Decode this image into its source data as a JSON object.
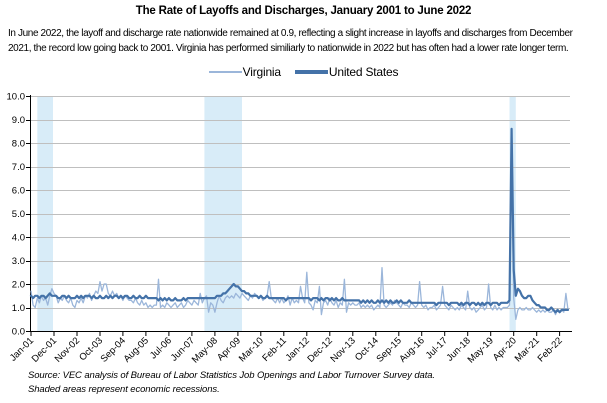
{
  "header": {
    "title": "The Rate of Layoffs and Discharges, January 2001 to June 2022",
    "subtitle_line1": "In June 2022, the layoff and discharge rate nationwide remained at 0.9, reflecting a slight increase in layoffs and discharges from December",
    "subtitle_line2": "2021, the record low going back to 2001. Virginia has performed similiarly to nationwide in 2022 but has often had a lower rate longer term."
  },
  "legend": {
    "items": [
      {
        "label": "Virginia",
        "color": "#9BB6DA"
      },
      {
        "label": "United States",
        "color": "#4472A8"
      }
    ]
  },
  "footer": {
    "source_line1": "Source: VEC analysis of Bureau of Labor Statistics Job Openings and Labor Turnover Survey data.",
    "source_line2": "Shaded areas represent economic recessions."
  },
  "chart_data": {
    "type": "line",
    "title": "The Rate of Layoffs and Discharges, January 2001 to June 2022",
    "x_frequency": "monthly",
    "x_start": "Jan-2001",
    "x_end": "Jun-2022",
    "x_tick_interval_months": 11,
    "x_tick_labels": [
      "Jan-01",
      "Dec-01",
      "Nov-02",
      "Oct-03",
      "Sep-04",
      "Aug-05",
      "Jul-06",
      "Jun-07",
      "May-08",
      "Apr-09",
      "Mar-10",
      "Feb-11",
      "Jan-12",
      "Dec-12",
      "Nov-13",
      "Oct-14",
      "Sep-15",
      "Aug-16",
      "Jul-17",
      "Jun-18",
      "May-19",
      "Apr-20",
      "Mar-21",
      "Feb-22"
    ],
    "y_ticks": [
      "0.0",
      "1.0",
      "2.0",
      "3.0",
      "4.0",
      "5.0",
      "6.0",
      "7.0",
      "8.0",
      "9.0",
      "10.0"
    ],
    "ylim": [
      0,
      10
    ],
    "grid": true,
    "gridline_color": "#BFBFBF",
    "axis_color": "#000000",
    "legend_position": "top",
    "recession_band_color": "#D8ECF8",
    "recessions": [
      {
        "label": "2001 recession",
        "start_month_index": 3,
        "end_month_index": 10.5
      },
      {
        "label": "2007-2009 recession",
        "start_month_index": 83,
        "end_month_index": 101
      },
      {
        "label": "2020 recession",
        "start_month_index": 229,
        "end_month_index": 232
      }
    ],
    "series": [
      {
        "name": "Virginia",
        "color": "#9BB6DA",
        "width": 1.3,
        "values": [
          1.7,
          1.1,
          1.0,
          1.4,
          1.2,
          1.5,
          1.3,
          1.4,
          1.1,
          1.5,
          1.8,
          1.6,
          1.5,
          1.2,
          1.4,
          1.3,
          1.5,
          1.3,
          1.2,
          1.4,
          1.1,
          1.0,
          1.3,
          1.2,
          1.4,
          1.2,
          1.5,
          1.4,
          1.6,
          1.3,
          1.5,
          1.7,
          1.6,
          2.1,
          1.7,
          2.0,
          2.0,
          1.6,
          1.5,
          1.7,
          1.5,
          1.6,
          1.4,
          1.5,
          1.3,
          1.5,
          1.4,
          1.3,
          1.3,
          1.2,
          1.4,
          1.2,
          1.1,
          1.3,
          1.1,
          1.2,
          1.0,
          1.1,
          1.0,
          1.1,
          1.1,
          2.2,
          1.0,
          1.1,
          1.0,
          1.2,
          1.1,
          1.0,
          1.1,
          1.2,
          1.0,
          1.1,
          1.2,
          1.0,
          1.1,
          1.3,
          1.2,
          1.1,
          1.3,
          1.2,
          1.1,
          1.6,
          1.2,
          1.4,
          1.5,
          0.8,
          1.2,
          1.1,
          0.8,
          1.2,
          1.5,
          1.3,
          1.2,
          1.4,
          1.5,
          1.4,
          1.5,
          1.4,
          1.6,
          1.5,
          1.4,
          1.6,
          1.5,
          1.4,
          1.3,
          1.5,
          1.4,
          1.6,
          1.5,
          1.4,
          1.5,
          1.3,
          1.4,
          1.5,
          2.1,
          1.4,
          1.3,
          1.2,
          1.4,
          1.2,
          1.4,
          1.2,
          1.3,
          1.5,
          1.1,
          1.4,
          1.2,
          1.3,
          1.2,
          1.9,
          1.4,
          1.2,
          2.5,
          1.2,
          1.1,
          0.9,
          1.3,
          1.2,
          1.9,
          0.7,
          1.2,
          1.3,
          1.1,
          1.4,
          1.2,
          1.1,
          1.3,
          1.0,
          1.2,
          1.1,
          2.2,
          0.8,
          1.2,
          1.1,
          1.2,
          1.1,
          1.1,
          1.2,
          1.0,
          1.1,
          1.0,
          1.1,
          1.0,
          1.1,
          0.9,
          1.0,
          1.1,
          1.0,
          2.7,
          1.1,
          1.0,
          1.1,
          1.2,
          1.1,
          1.3,
          1.2,
          1.1,
          1.0,
          1.2,
          1.1,
          1.1,
          1.0,
          1.2,
          1.1,
          1.0,
          1.1,
          2.1,
          1.1,
          1.0,
          1.1,
          0.9,
          1.0,
          1.0,
          1.1,
          0.9,
          1.0,
          1.1,
          1.9,
          1.1,
          1.0,
          0.9,
          1.1,
          1.0,
          0.9,
          1.0,
          0.9,
          1.1,
          1.0,
          0.9,
          1.7,
          1.0,
          0.9,
          1.0,
          0.8,
          0.9,
          1.0,
          1.1,
          0.9,
          1.0,
          2.0,
          1.0,
          0.9,
          1.1,
          0.9,
          1.0,
          0.9,
          1.0,
          1.0,
          1.0,
          1.1,
          8.4,
          1.4,
          0.5,
          0.9,
          1.0,
          0.9,
          0.9,
          1.0,
          0.9,
          0.9,
          1.0,
          0.9,
          0.8,
          0.9,
          0.8,
          0.9,
          0.8,
          0.9,
          0.8,
          0.8,
          0.9,
          0.7,
          0.9,
          0.8,
          0.9,
          0.8,
          1.6,
          0.9
        ]
      },
      {
        "name": "United States",
        "color": "#4472A8",
        "width": 2.2,
        "values": [
          1.5,
          1.4,
          1.5,
          1.5,
          1.4,
          1.5,
          1.5,
          1.4,
          1.5,
          1.6,
          1.5,
          1.5,
          1.5,
          1.4,
          1.4,
          1.5,
          1.5,
          1.4,
          1.5,
          1.4,
          1.4,
          1.4,
          1.5,
          1.4,
          1.5,
          1.4,
          1.5,
          1.5,
          1.5,
          1.4,
          1.5,
          1.4,
          1.4,
          1.5,
          1.4,
          1.4,
          1.5,
          1.4,
          1.5,
          1.4,
          1.5,
          1.5,
          1.4,
          1.5,
          1.4,
          1.5,
          1.5,
          1.4,
          1.4,
          1.5,
          1.4,
          1.4,
          1.5,
          1.4,
          1.4,
          1.5,
          1.4,
          1.4,
          1.4,
          1.4,
          1.4,
          1.3,
          1.4,
          1.3,
          1.4,
          1.3,
          1.4,
          1.3,
          1.3,
          1.4,
          1.3,
          1.3,
          1.3,
          1.4,
          1.3,
          1.4,
          1.4,
          1.4,
          1.4,
          1.4,
          1.4,
          1.4,
          1.4,
          1.4,
          1.4,
          1.4,
          1.4,
          1.4,
          1.4,
          1.5,
          1.5,
          1.5,
          1.6,
          1.6,
          1.7,
          1.8,
          1.9,
          2.0,
          1.9,
          1.9,
          1.8,
          1.7,
          1.7,
          1.6,
          1.6,
          1.5,
          1.5,
          1.5,
          1.5,
          1.4,
          1.5,
          1.4,
          1.4,
          1.5,
          1.4,
          1.4,
          1.4,
          1.4,
          1.4,
          1.4,
          1.4,
          1.4,
          1.3,
          1.4,
          1.4,
          1.4,
          1.4,
          1.4,
          1.4,
          1.4,
          1.4,
          1.4,
          1.4,
          1.4,
          1.3,
          1.4,
          1.4,
          1.4,
          1.3,
          1.4,
          1.3,
          1.4,
          1.4,
          1.3,
          1.4,
          1.3,
          1.4,
          1.3,
          1.3,
          1.4,
          1.3,
          1.3,
          1.3,
          1.3,
          1.3,
          1.3,
          1.3,
          1.3,
          1.2,
          1.3,
          1.2,
          1.3,
          1.2,
          1.3,
          1.2,
          1.2,
          1.3,
          1.2,
          1.3,
          1.2,
          1.3,
          1.2,
          1.3,
          1.2,
          1.2,
          1.3,
          1.2,
          1.3,
          1.2,
          1.2,
          1.2,
          1.3,
          1.2,
          1.2,
          1.2,
          1.2,
          1.2,
          1.2,
          1.2,
          1.2,
          1.2,
          1.2,
          1.2,
          1.2,
          1.1,
          1.2,
          1.2,
          1.2,
          1.2,
          1.2,
          1.1,
          1.2,
          1.2,
          1.2,
          1.2,
          1.1,
          1.2,
          1.1,
          1.2,
          1.2,
          1.1,
          1.2,
          1.2,
          1.1,
          1.2,
          1.1,
          1.2,
          1.1,
          1.2,
          1.2,
          1.1,
          1.2,
          1.2,
          1.2,
          1.1,
          1.2,
          1.2,
          1.2,
          1.2,
          1.3,
          8.6,
          2.6,
          1.5,
          1.8,
          1.7,
          1.5,
          1.4,
          1.4,
          1.5,
          1.5,
          1.3,
          1.2,
          1.1,
          1.1,
          1.0,
          1.0,
          1.0,
          0.9,
          0.9,
          1.0,
          0.9,
          0.8,
          0.9,
          0.8,
          0.9,
          0.9,
          0.9,
          0.9
        ]
      }
    ]
  }
}
